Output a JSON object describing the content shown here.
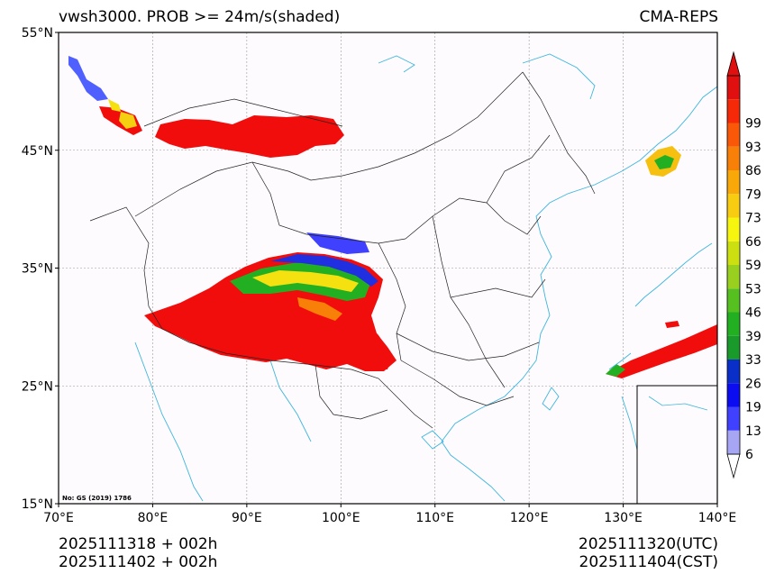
{
  "title": {
    "left": "vwsh3000. PROB >= 24m/s(shaded)",
    "right": "CMA-REPS"
  },
  "axes": {
    "lat_labels": [
      "55°N",
      "45°N",
      "35°N",
      "25°N",
      "15°N"
    ],
    "lon_labels": [
      "70°E",
      "80°E",
      "90°E",
      "100°E",
      "110°E",
      "120°E",
      "130°E",
      "140°E"
    ],
    "lat_range": [
      15,
      55
    ],
    "lon_range": [
      70,
      140
    ]
  },
  "colorbar": {
    "levels": [
      "6",
      "13",
      "19",
      "26",
      "33",
      "39",
      "46",
      "53",
      "59",
      "66",
      "73",
      "79",
      "86",
      "93",
      "99"
    ],
    "colors": [
      "#a6a6f5",
      "#4040ff",
      "#0c0cf0",
      "#0a2fc9",
      "#1a9a2a",
      "#22b022",
      "#55c020",
      "#99d020",
      "#ccdf10",
      "#f5f510",
      "#f8cc10",
      "#f8a808",
      "#f88008",
      "#f85808",
      "#f52808",
      "#e01010"
    ],
    "under_color": "#ffffff",
    "over_color": "#e01010"
  },
  "map_note": "No: GS (2019) 1786",
  "footer": {
    "init_utc": "2025111318  +  002h",
    "init_cst": "2025111402  +  002h",
    "valid_utc": "2025111320(UTC)",
    "valid_cst": "2025111404(CST)"
  },
  "colors": {
    "coast": "#3fb6df",
    "border": "#222222",
    "grid": "#999999",
    "shade_max": "#f20d0d"
  }
}
